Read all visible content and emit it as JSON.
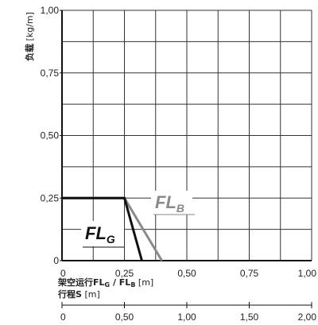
{
  "chart_data": {
    "type": "line",
    "ylabel": {
      "main": "负载",
      "unit": "[kg/m]"
    },
    "xlabel_top": {
      "main": "架空运行FL",
      "sub1": "G",
      "sep": " / FL",
      "sub2": "B",
      "unit": " [m]"
    },
    "xlabel_bottom": {
      "main": "行程S",
      "unit": " [m]"
    },
    "xlim": [
      0,
      1.0
    ],
    "ylim": [
      0,
      1.0
    ],
    "x_ticks": [
      0,
      0.25,
      0.5,
      0.75,
      1.0
    ],
    "x_tick_labels": [
      "0",
      "0,25",
      "0,50",
      "0,75",
      "1,00"
    ],
    "y_ticks": [
      0,
      0.25,
      0.5,
      0.75,
      1.0
    ],
    "y_tick_labels": [
      "0",
      "0,25",
      "0,50",
      "0,75",
      "1,00"
    ],
    "stroke_axis": {
      "range": [
        0,
        2.0
      ],
      "ticks": [
        0,
        0.5,
        1.0,
        1.5,
        2.0
      ],
      "tick_labels": [
        "0",
        "0,50",
        "1,00",
        "1,50",
        "2,00"
      ]
    },
    "grid": true,
    "series": [
      {
        "name": "FL",
        "subscript": "G",
        "color": "#111111",
        "points": [
          [
            0,
            0.25
          ],
          [
            0.25,
            0.25
          ],
          [
            0.32,
            0
          ]
        ]
      },
      {
        "name": "FL",
        "subscript": "B",
        "color": "#8a8a8a",
        "points": [
          [
            0,
            0.25
          ],
          [
            0.25,
            0.25
          ],
          [
            0.4,
            0
          ]
        ]
      }
    ]
  }
}
